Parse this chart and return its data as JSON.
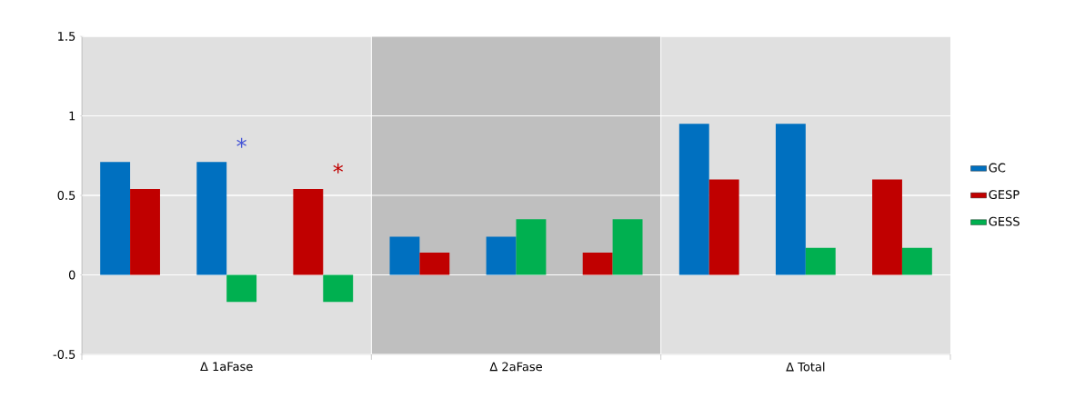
{
  "chart_data": {
    "type": "bar",
    "categories": [
      null,
      null,
      null,
      null,
      null,
      null,
      null,
      null,
      null
    ],
    "series": [
      {
        "name": "GC",
        "color": "#0070c0",
        "values": [
          0.71,
          0.71,
          null,
          0.24,
          0.24,
          null,
          0.95,
          0.95,
          null
        ]
      },
      {
        "name": "GESP",
        "color": "#c00000",
        "values": [
          0.54,
          null,
          0.54,
          0.14,
          null,
          0.14,
          0.6,
          null,
          0.6
        ]
      },
      {
        "name": "GESS",
        "color": "#00b050",
        "values": [
          null,
          -0.17,
          -0.17,
          null,
          0.35,
          0.35,
          null,
          0.17,
          0.17
        ]
      }
    ],
    "ylim": [
      -0.5,
      1.5
    ],
    "yticks": [
      -0.5,
      0,
      0.5,
      1,
      1.5
    ],
    "grid": "y",
    "legend": "right",
    "annotations": [
      "Δ 1aFase",
      "Δ 2aFase",
      "Δ Total",
      "*",
      "*"
    ]
  }
}
